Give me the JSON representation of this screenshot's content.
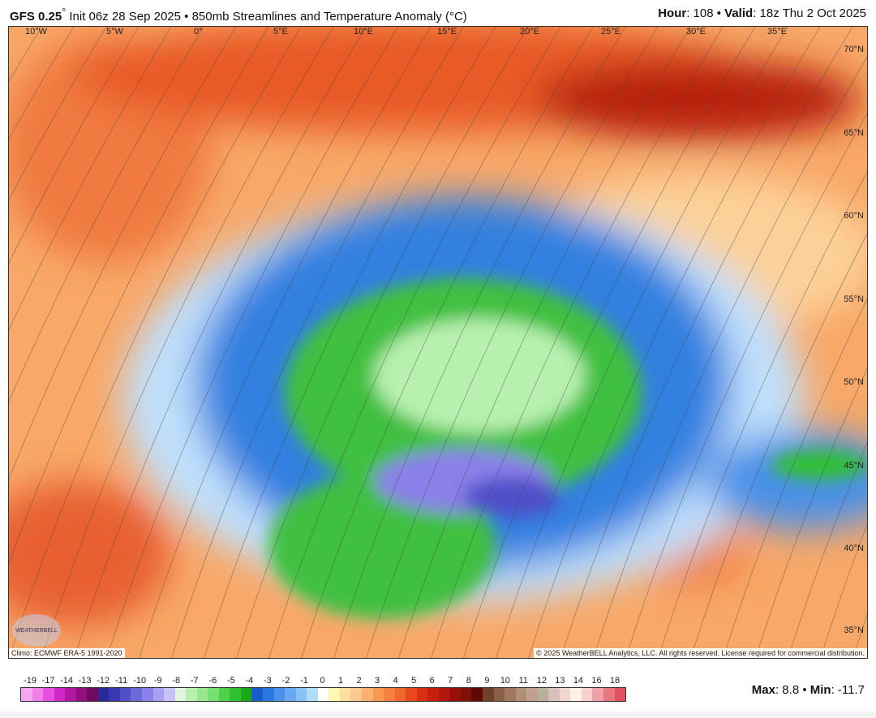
{
  "header": {
    "model": "GFS 0.25",
    "degree": "°",
    "init": " Init 06z 28 Sep 2025 • 850mb Streamlines and Temperature Anomaly (°C)",
    "hour_label": "Hour",
    "hour": ": 108 • ",
    "valid_label": "Valid",
    "valid": ": 18z Thu 2 Oct 2025"
  },
  "map": {
    "longitudes": [
      "10°W",
      "5°W",
      "0°",
      "5°E",
      "10°E",
      "15°E",
      "20°E",
      "25°E",
      "30°E",
      "35°E"
    ],
    "latitudes": [
      "70°N",
      "65°N",
      "60°N",
      "55°N",
      "50°N",
      "45°N",
      "40°N",
      "35°N"
    ],
    "climo": "Climo: ECMWF ERA-5 1991-2020",
    "copyright": "© 2025 WeatherBELL Analytics, LLC. All rights reserved. License required for commercial distribution.",
    "logo": "WeatherBELL"
  },
  "legend": {
    "labels": [
      "-19",
      "-17",
      "-14",
      "-13",
      "-12",
      "-11",
      "-10",
      "-9",
      "-8",
      "-7",
      "-6",
      "-5",
      "-4",
      "-3",
      "-2",
      "-1",
      "0",
      "1",
      "2",
      "3",
      "4",
      "5",
      "6",
      "7",
      "8",
      "9",
      "10",
      "11",
      "12",
      "13",
      "14",
      "16",
      "18"
    ],
    "colors": [
      "#f7a6f0",
      "#f07fe8",
      "#e84ee0",
      "#d028c8",
      "#b0189e",
      "#901080",
      "#700a60",
      "#2a2a9a",
      "#3a3ab0",
      "#5050c8",
      "#6a6ad8",
      "#8a80e8",
      "#a8a0f0",
      "#c8c0f8",
      "#e0f8e0",
      "#b8f0b0",
      "#98e890",
      "#78e070",
      "#50d048",
      "#30c030",
      "#18a818",
      "#1a5cc8",
      "#2a78e0",
      "#4a90e8",
      "#68a8f0",
      "#88c0f8",
      "#b0dcfc",
      "#ffffff",
      "#fff8b0",
      "#fde0a0",
      "#fcc890",
      "#fbb070",
      "#f89850",
      "#f58040",
      "#f06830",
      "#e84820",
      "#d83010",
      "#c82010",
      "#b01810",
      "#981008",
      "#801008",
      "#600808",
      "#704028",
      "#886048",
      "#a07860",
      "#b09078",
      "#c0a090",
      "#b8b098",
      "#d8c0b8",
      "#f0d8d0",
      "#fff0ea",
      "#f8d0d0",
      "#f0a0a8",
      "#e87880",
      "#e05060"
    ],
    "max_label": "Max",
    "max": ": 8.8 • ",
    "min_label": "Min",
    "min": ": -11.7"
  }
}
